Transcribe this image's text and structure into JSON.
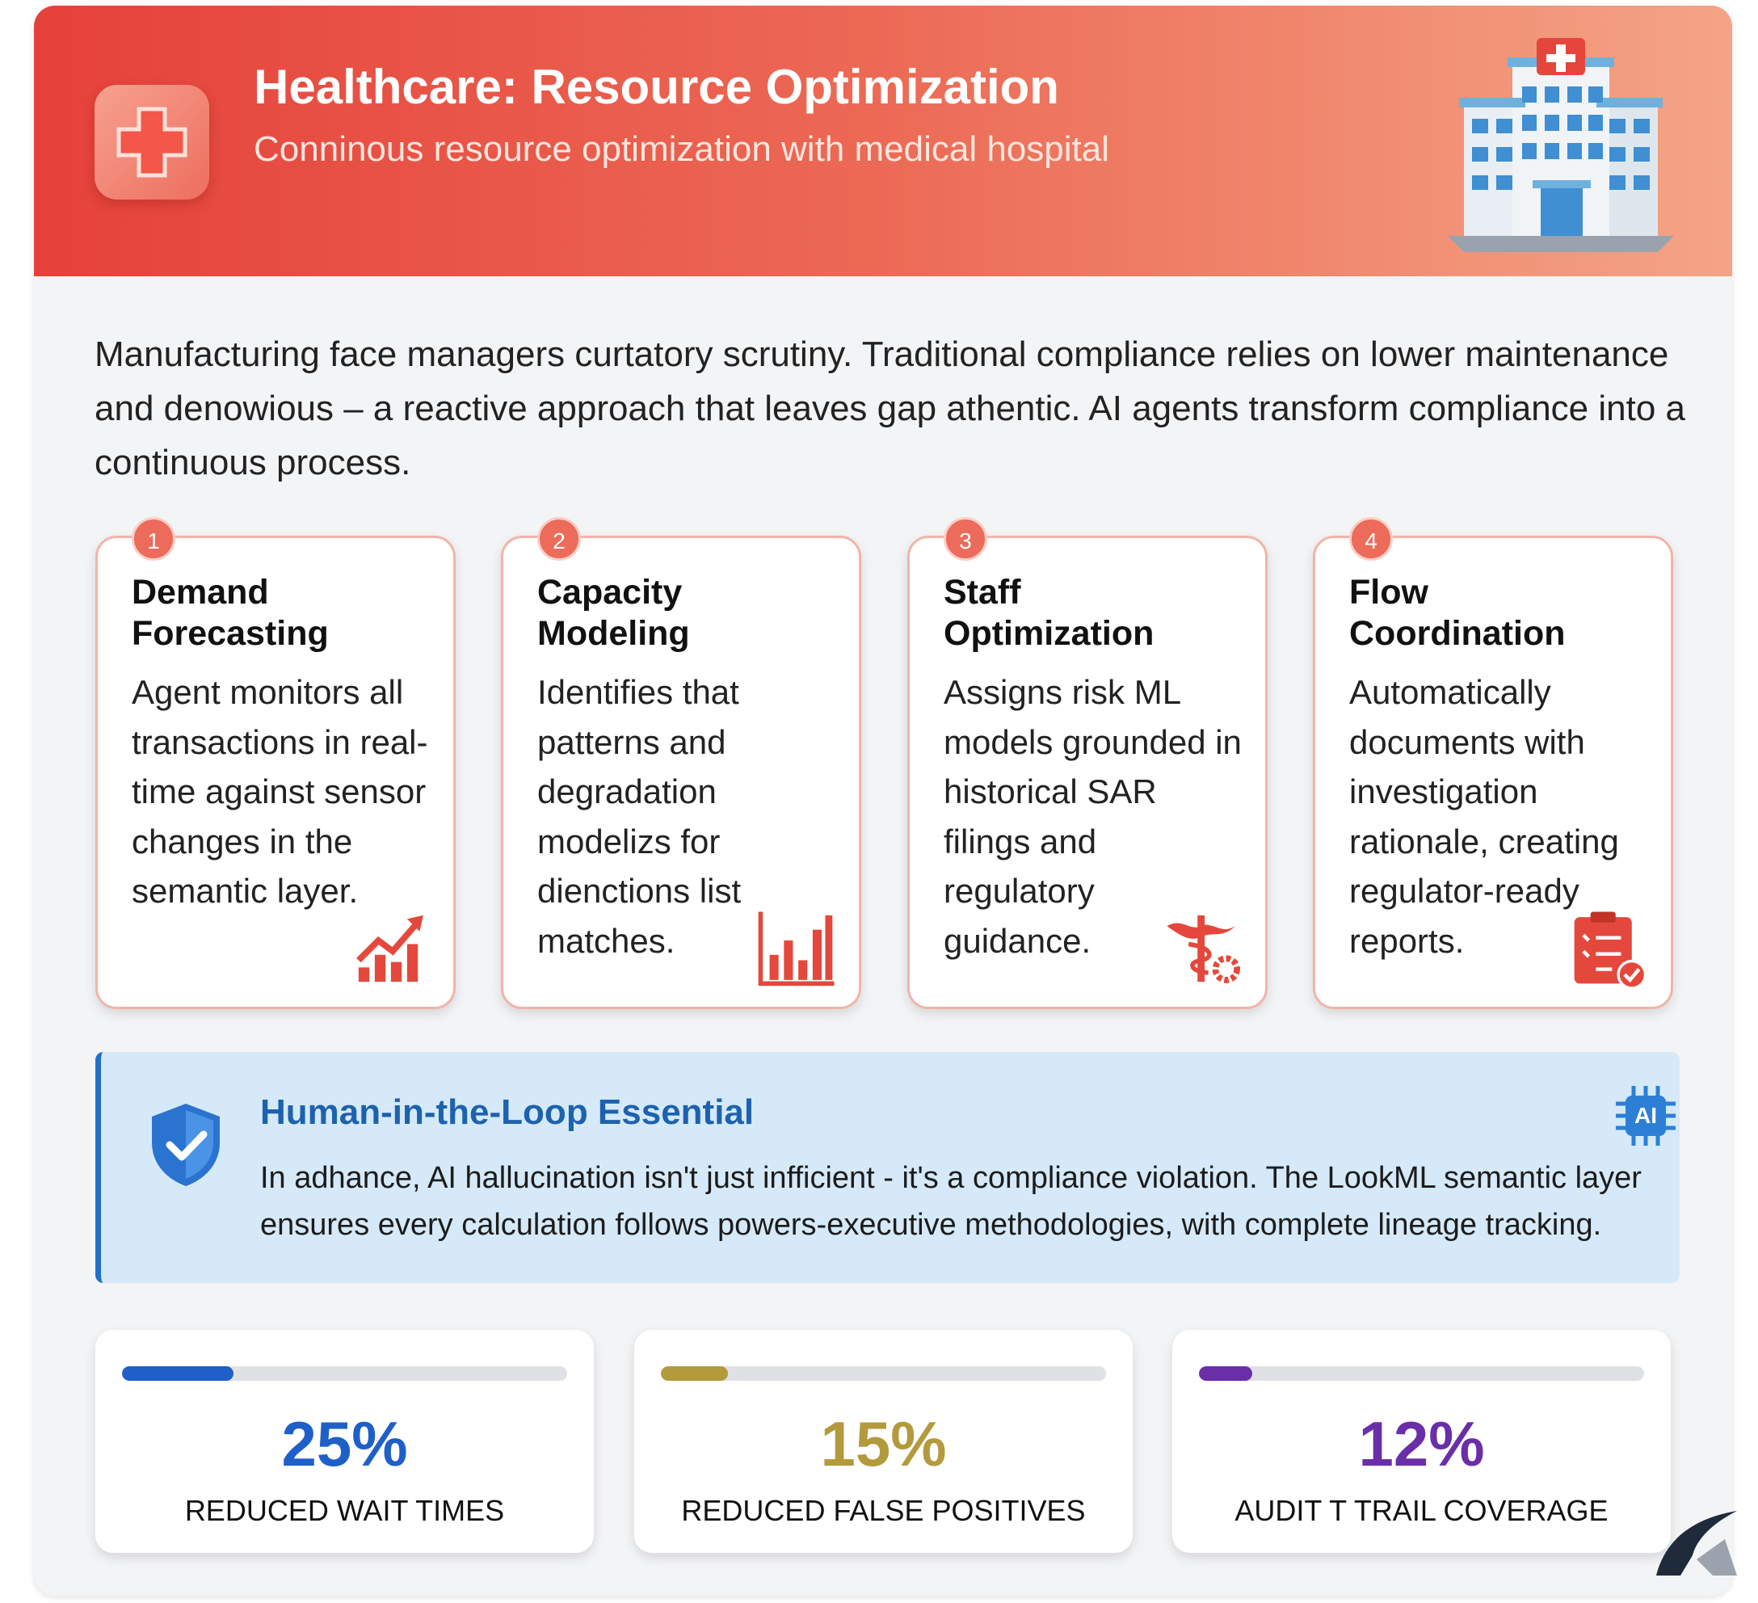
{
  "header": {
    "title": "Healthcare: Resource Optimization",
    "subtitle": "Conninous resource optimization with medical hospital"
  },
  "intro": "Manufacturing face managers curtatory scrutiny. Traditional compliance relies on lower maintenance and denowious – a reactive approach that leaves gap athentic. AI agents transform compliance into a continuous process.",
  "cards": [
    {
      "number": 1,
      "title": "Demand Forecasting",
      "text": "Agent monitors all transactions in real-time against sensor changes in the semantic layer."
    },
    {
      "number": 2,
      "title": "Capacity Modeling",
      "text": "Identifies that patterns and degradation modelizs for dienctions list matches."
    },
    {
      "number": 3,
      "title": "Staff Optimization",
      "text": "Assigns risk ML models grounded in historical SAR filings and regulatory guidance."
    },
    {
      "number": 4,
      "title": "Flow Coordination",
      "text": "Automatically documents with investigation rationale, creating regulator-ready reports."
    }
  ],
  "callout": {
    "title": "Human-in-the-Loop Essential",
    "badge": "AI",
    "text": "In adhance, AI hallucination isn't just infficient - it's a compliance violation. The LookML semantic layer ensures every calculation follows powers-executive methodologies, with complete lineage tracking."
  },
  "stats": [
    {
      "value": 25,
      "value_label": "25%",
      "label": "REDUCED WAIT TIMES",
      "color": "#1f5fc8"
    },
    {
      "value": 15,
      "value_label": "15%",
      "label": "REDUCED FALSE POSITIVES",
      "color": "#b39a3c"
    },
    {
      "value": 12,
      "value_label": "12%",
      "label": "AUDIT T TRAIL COVERAGE",
      "color": "#6a2fa8"
    }
  ]
}
